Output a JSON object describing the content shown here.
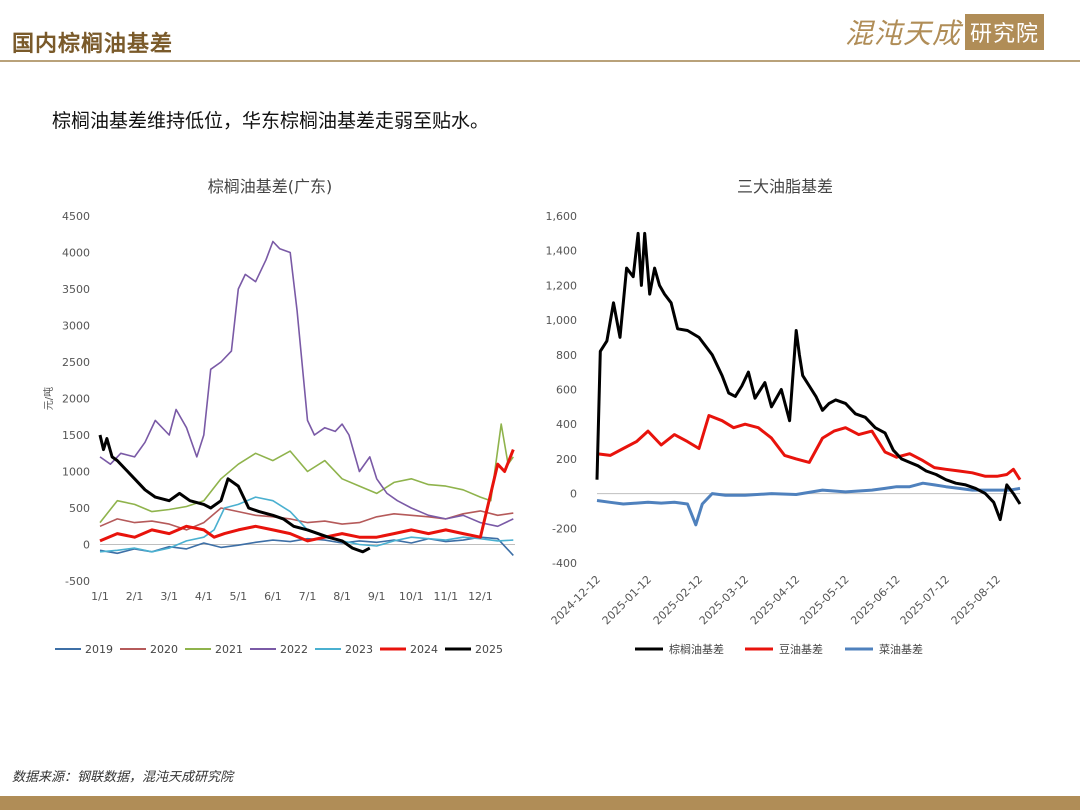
{
  "header": {
    "title": "国内棕榈油基差",
    "logo_script": "混沌天成",
    "logo_box": "研究院"
  },
  "subtitle": "棕榈油基差维持低位，华东棕榈油基差走弱至贴水。",
  "source": "数据来源：钢联数据，混沌天成研究院",
  "colors": {
    "brand": "#b08d57",
    "header_text": "#7a5a2a"
  },
  "chart_data": [
    {
      "type": "line",
      "title": "棕榈油基差(广东)",
      "ylabel": "元/吨",
      "ylim": [
        -500,
        4500
      ],
      "yticks": [
        -500,
        0,
        500,
        1000,
        1500,
        2000,
        2500,
        3000,
        3500,
        4000,
        4500
      ],
      "xticks": [
        "1/1",
        "2/1",
        "3/1",
        "4/1",
        "5/1",
        "6/1",
        "7/1",
        "8/1",
        "9/1",
        "10/1",
        "11/1",
        "12/1"
      ],
      "x_domain": [
        1,
        13
      ],
      "legend_position": "bottom",
      "series": [
        {
          "name": "2019",
          "color": "#3d6fa6",
          "x": [
            1,
            1.5,
            2,
            2.5,
            3,
            3.5,
            4,
            4.5,
            5,
            5.5,
            6,
            6.5,
            7,
            7.5,
            8,
            8.5,
            9,
            9.5,
            10,
            10.5,
            11,
            11.5,
            12,
            12.5,
            12.95
          ],
          "y": [
            -80,
            -120,
            -60,
            -100,
            -30,
            -60,
            20,
            -40,
            -10,
            30,
            60,
            40,
            80,
            60,
            20,
            50,
            30,
            60,
            20,
            80,
            40,
            60,
            100,
            80,
            -150
          ]
        },
        {
          "name": "2020",
          "color": "#b55a5a",
          "x": [
            1,
            1.5,
            2,
            2.5,
            3,
            3.5,
            4,
            4.5,
            5,
            5.5,
            6,
            6.5,
            7,
            7.5,
            8,
            8.5,
            9,
            9.5,
            10,
            10.5,
            11,
            11.5,
            12,
            12.5,
            12.95
          ],
          "y": [
            250,
            350,
            300,
            320,
            280,
            200,
            300,
            500,
            450,
            400,
            380,
            350,
            300,
            320,
            280,
            300,
            380,
            420,
            400,
            380,
            350,
            420,
            460,
            400,
            430
          ]
        },
        {
          "name": "2021",
          "color": "#8fb34c",
          "x": [
            1,
            1.5,
            2,
            2.5,
            3,
            3.5,
            4,
            4.5,
            5,
            5.5,
            6,
            6.5,
            7,
            7.5,
            8,
            8.5,
            9,
            9.5,
            10,
            10.5,
            11,
            11.5,
            12,
            12.3,
            12.6,
            12.8,
            12.95
          ],
          "y": [
            300,
            600,
            550,
            450,
            480,
            520,
            600,
            900,
            1100,
            1250,
            1150,
            1280,
            1000,
            1150,
            900,
            800,
            700,
            850,
            900,
            820,
            800,
            750,
            650,
            600,
            1650,
            1100,
            1200
          ]
        },
        {
          "name": "2022",
          "color": "#7a5aa6",
          "x": [
            1,
            1.3,
            1.6,
            2,
            2.3,
            2.6,
            3,
            3.2,
            3.5,
            3.8,
            4,
            4.2,
            4.5,
            4.8,
            5,
            5.2,
            5.5,
            5.8,
            6,
            6.2,
            6.5,
            6.7,
            7,
            7.2,
            7.5,
            7.8,
            8,
            8.2,
            8.5,
            8.8,
            9,
            9.3,
            9.6,
            10,
            10.5,
            11,
            11.5,
            12,
            12.5,
            12.95
          ],
          "y": [
            1200,
            1100,
            1250,
            1200,
            1400,
            1700,
            1500,
            1850,
            1600,
            1200,
            1500,
            2400,
            2500,
            2650,
            3500,
            3700,
            3600,
            3900,
            4150,
            4050,
            4000,
            3200,
            1700,
            1500,
            1600,
            1550,
            1650,
            1500,
            1000,
            1200,
            900,
            700,
            600,
            500,
            400,
            350,
            400,
            300,
            250,
            350
          ]
        },
        {
          "name": "2023",
          "color": "#4ab0d0",
          "x": [
            1,
            1.5,
            2,
            2.5,
            3,
            3.5,
            4,
            4.3,
            4.6,
            5,
            5.5,
            6,
            6.5,
            7,
            7.5,
            8,
            8.5,
            9,
            9.5,
            10,
            10.5,
            11,
            11.5,
            12,
            12.5,
            12.95
          ],
          "y": [
            -100,
            -80,
            -50,
            -100,
            -50,
            50,
            100,
            200,
            500,
            550,
            650,
            600,
            450,
            200,
            100,
            50,
            0,
            -20,
            50,
            100,
            80,
            60,
            100,
            80,
            50,
            60
          ]
        },
        {
          "name": "2024",
          "color": "#e8130c",
          "x": [
            1,
            1.5,
            2,
            2.5,
            3,
            3.5,
            4,
            4.3,
            4.6,
            5,
            5.5,
            6,
            6.5,
            7,
            7.5,
            8,
            8.5,
            9,
            9.5,
            10,
            10.5,
            11,
            11.5,
            12,
            12.3,
            12.5,
            12.7,
            12.95
          ],
          "y": [
            50,
            150,
            100,
            200,
            150,
            250,
            200,
            100,
            150,
            200,
            250,
            200,
            150,
            50,
            100,
            150,
            100,
            100,
            150,
            200,
            150,
            200,
            150,
            100,
            700,
            1100,
            1000,
            1300
          ]
        },
        {
          "name": "2025",
          "color": "#000000",
          "x": [
            1,
            1.1,
            1.2,
            1.35,
            1.5,
            1.7,
            2,
            2.3,
            2.6,
            3,
            3.3,
            3.6,
            4,
            4.2,
            4.5,
            4.7,
            5,
            5.3,
            5.6,
            6,
            6.3,
            6.6,
            7,
            7.3,
            7.6,
            8,
            8.3,
            8.6,
            8.8
          ],
          "y": [
            1500,
            1300,
            1450,
            1200,
            1150,
            1050,
            900,
            750,
            650,
            600,
            700,
            600,
            550,
            500,
            600,
            900,
            800,
            500,
            450,
            400,
            350,
            250,
            200,
            150,
            100,
            50,
            -50,
            -100,
            -50
          ]
        }
      ]
    },
    {
      "type": "line",
      "title": "三大油脂基差",
      "ylim": [
        -400,
        1600
      ],
      "yticks": [
        -400,
        -200,
        0,
        200,
        400,
        600,
        800,
        1000,
        1200,
        1400,
        1600
      ],
      "ytick_labels": [
        "-400",
        "-200",
        "0",
        "200",
        "400",
        "600",
        "800",
        "1,000",
        "1,200",
        "1,400",
        "1,600"
      ],
      "xticks": [
        "2024-12-12",
        "2025-01-12",
        "2025-02-12",
        "2025-03-12",
        "2025-04-12",
        "2025-05-12",
        "2025-06-12",
        "2025-07-12",
        "2025-08-12"
      ],
      "x_domain": [
        "2024-12-12",
        "2025-08-26"
      ],
      "legend_position": "bottom",
      "series": [
        {
          "name": "棕榈油基差",
          "color": "#000000",
          "x": [
            "2024-12-12",
            "2024-12-14",
            "2024-12-18",
            "2024-12-22",
            "2024-12-26",
            "2024-12-30",
            "2025-01-03",
            "2025-01-06",
            "2025-01-08",
            "2025-01-10",
            "2025-01-13",
            "2025-01-16",
            "2025-01-19",
            "2025-01-22",
            "2025-01-26",
            "2025-01-30",
            "2025-02-05",
            "2025-02-12",
            "2025-02-20",
            "2025-02-26",
            "2025-03-02",
            "2025-03-06",
            "2025-03-10",
            "2025-03-14",
            "2025-03-18",
            "2025-03-24",
            "2025-03-28",
            "2025-04-03",
            "2025-04-08",
            "2025-04-12",
            "2025-04-14",
            "2025-04-16",
            "2025-04-20",
            "2025-04-24",
            "2025-04-28",
            "2025-05-02",
            "2025-05-06",
            "2025-05-12",
            "2025-05-18",
            "2025-05-24",
            "2025-05-30",
            "2025-06-05",
            "2025-06-10",
            "2025-06-15",
            "2025-06-20",
            "2025-06-25",
            "2025-06-30",
            "2025-07-06",
            "2025-07-12",
            "2025-07-18",
            "2025-07-24",
            "2025-07-30",
            "2025-08-05",
            "2025-08-10",
            "2025-08-14",
            "2025-08-18",
            "2025-08-22",
            "2025-08-26"
          ],
          "y": [
            80,
            820,
            880,
            1100,
            900,
            1300,
            1250,
            1500,
            1200,
            1500,
            1150,
            1300,
            1200,
            1150,
            1100,
            950,
            940,
            900,
            800,
            680,
            580,
            560,
            620,
            700,
            550,
            640,
            500,
            600,
            420,
            940,
            800,
            680,
            620,
            560,
            480,
            520,
            540,
            520,
            460,
            440,
            380,
            350,
            250,
            200,
            180,
            160,
            130,
            110,
            80,
            60,
            50,
            30,
            0,
            -50,
            -150,
            50,
            0,
            -60
          ]
        },
        {
          "name": "豆油基差",
          "color": "#e8130c",
          "x": [
            "2024-12-12",
            "2024-12-20",
            "2024-12-28",
            "2025-01-05",
            "2025-01-12",
            "2025-01-20",
            "2025-01-28",
            "2025-02-05",
            "2025-02-12",
            "2025-02-18",
            "2025-02-26",
            "2025-03-05",
            "2025-03-12",
            "2025-03-20",
            "2025-03-28",
            "2025-04-05",
            "2025-04-12",
            "2025-04-20",
            "2025-04-28",
            "2025-05-05",
            "2025-05-12",
            "2025-05-20",
            "2025-05-28",
            "2025-06-05",
            "2025-06-12",
            "2025-06-20",
            "2025-06-28",
            "2025-07-05",
            "2025-07-12",
            "2025-07-20",
            "2025-07-28",
            "2025-08-05",
            "2025-08-12",
            "2025-08-18",
            "2025-08-22",
            "2025-08-26"
          ],
          "y": [
            230,
            220,
            260,
            300,
            360,
            280,
            340,
            300,
            260,
            450,
            420,
            380,
            400,
            380,
            320,
            220,
            200,
            180,
            320,
            360,
            380,
            340,
            360,
            240,
            210,
            230,
            190,
            150,
            140,
            130,
            120,
            100,
            100,
            110,
            140,
            80
          ]
        },
        {
          "name": "菜油基差",
          "color": "#4f81bd",
          "x": [
            "2024-12-12",
            "2024-12-20",
            "2024-12-28",
            "2025-01-05",
            "2025-01-12",
            "2025-01-20",
            "2025-01-28",
            "2025-02-05",
            "2025-02-10",
            "2025-02-14",
            "2025-02-20",
            "2025-02-28",
            "2025-03-12",
            "2025-03-28",
            "2025-04-12",
            "2025-04-28",
            "2025-05-12",
            "2025-05-28",
            "2025-06-05",
            "2025-06-12",
            "2025-06-20",
            "2025-06-28",
            "2025-07-05",
            "2025-07-12",
            "2025-07-20",
            "2025-07-28",
            "2025-08-05",
            "2025-08-12",
            "2025-08-20",
            "2025-08-26"
          ],
          "y": [
            -40,
            -50,
            -60,
            -55,
            -50,
            -55,
            -50,
            -60,
            -180,
            -60,
            0,
            -10,
            -10,
            0,
            -5,
            20,
            10,
            20,
            30,
            40,
            40,
            60,
            50,
            40,
            30,
            20,
            20,
            20,
            20,
            30
          ]
        }
      ]
    }
  ]
}
